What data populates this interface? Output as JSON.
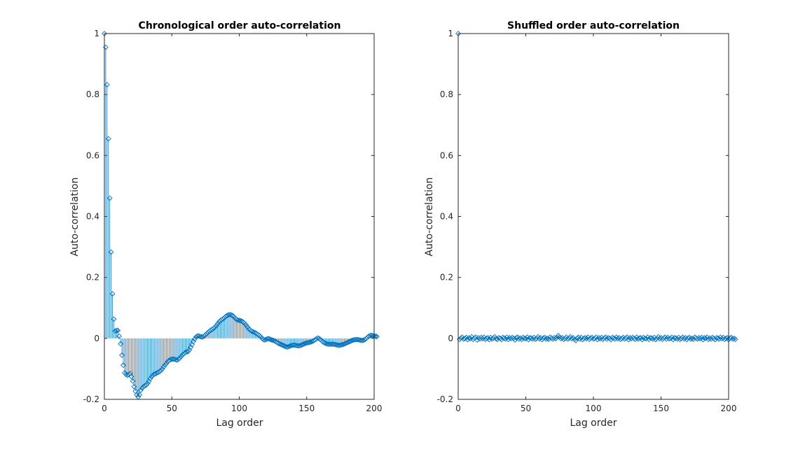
{
  "chart_data": [
    {
      "type": "stem",
      "title": "Chronological order auto-correlation",
      "xlabel": "Lag order",
      "ylabel": "Auto-correlation",
      "xlim": [
        0,
        200
      ],
      "ylim": [
        -0.2,
        1
      ],
      "xticks": [
        "0",
        "50",
        "100",
        "150",
        "200"
      ],
      "yticks": [
        "-0.2",
        "0",
        "0.2",
        "0.4",
        "0.6",
        "0.8",
        "1"
      ],
      "marker": "diamond",
      "color": "#0072BD",
      "grid": false,
      "lag_start": 0,
      "values": [
        1.0,
        0.955,
        0.832,
        0.655,
        0.46,
        0.283,
        0.146,
        0.063,
        0.024,
        0.026,
        0.026,
        0.007,
        -0.018,
        -0.055,
        -0.088,
        -0.113,
        -0.118,
        -0.121,
        -0.119,
        -0.115,
        -0.125,
        -0.14,
        -0.158,
        -0.173,
        -0.185,
        -0.192,
        -0.185,
        -0.17,
        -0.163,
        -0.158,
        -0.155,
        -0.153,
        -0.148,
        -0.141,
        -0.132,
        -0.126,
        -0.121,
        -0.117,
        -0.116,
        -0.113,
        -0.111,
        -0.108,
        -0.105,
        -0.1,
        -0.093,
        -0.087,
        -0.082,
        -0.076,
        -0.072,
        -0.07,
        -0.068,
        -0.068,
        -0.068,
        -0.07,
        -0.071,
        -0.068,
        -0.064,
        -0.059,
        -0.054,
        -0.05,
        -0.046,
        -0.044,
        -0.043,
        -0.038,
        -0.029,
        -0.02,
        -0.01,
        -0.002,
        0.005,
        0.008,
        0.008,
        0.006,
        0.005,
        0.005,
        0.008,
        0.012,
        0.016,
        0.02,
        0.024,
        0.027,
        0.03,
        0.033,
        0.037,
        0.042,
        0.048,
        0.054,
        0.058,
        0.061,
        0.064,
        0.068,
        0.072,
        0.075,
        0.077,
        0.078,
        0.077,
        0.075,
        0.071,
        0.066,
        0.062,
        0.06,
        0.059,
        0.058,
        0.056,
        0.053,
        0.049,
        0.044,
        0.038,
        0.032,
        0.028,
        0.024,
        0.022,
        0.02,
        0.018,
        0.015,
        0.012,
        0.009,
        0.005,
        0.0,
        -0.004,
        -0.005,
        -0.003,
        -0.001,
        -0.001,
        -0.003,
        -0.005,
        -0.006,
        -0.008,
        -0.01,
        -0.013,
        -0.016,
        -0.018,
        -0.02,
        -0.022,
        -0.024,
        -0.026,
        -0.028,
        -0.028,
        -0.026,
        -0.024,
        -0.023,
        -0.022,
        -0.022,
        -0.023,
        -0.024,
        -0.024,
        -0.024,
        -0.022,
        -0.02,
        -0.018,
        -0.016,
        -0.015,
        -0.014,
        -0.013,
        -0.012,
        -0.01,
        -0.008,
        -0.005,
        -0.002,
        0.001,
        0.0,
        -0.003,
        -0.007,
        -0.011,
        -0.014,
        -0.016,
        -0.018,
        -0.019,
        -0.019,
        -0.019,
        -0.019,
        -0.019,
        -0.02,
        -0.021,
        -0.022,
        -0.023,
        -0.022,
        -0.021,
        -0.02,
        -0.018,
        -0.016,
        -0.014,
        -0.012,
        -0.01,
        -0.008,
        -0.006,
        -0.005,
        -0.004,
        -0.004,
        -0.004,
        -0.005,
        -0.006,
        -0.007,
        -0.006,
        -0.004,
        -0.001,
        0.003,
        0.007,
        0.009,
        0.01,
        0.009,
        0.008,
        0.007,
        0.006
      ]
    },
    {
      "type": "stem",
      "title": "Shuffled order auto-correlation",
      "xlabel": "Lag order",
      "ylabel": "Auto-correlation",
      "xlim": [
        0,
        200
      ],
      "ylim": [
        -0.2,
        1
      ],
      "xticks": [
        "0",
        "50",
        "100",
        "150",
        "200"
      ],
      "yticks": [
        "-0.2",
        "0",
        "0.2",
        "0.4",
        "0.6",
        "0.8",
        "1"
      ],
      "marker": "diamond",
      "color": "#0072BD",
      "grid": false,
      "lag_start": 0,
      "values": [
        1.0,
        -0.003,
        0.001,
        0.004,
        -0.002,
        0.0,
        0.003,
        -0.004,
        0.002,
        -0.001,
        0.005,
        -0.003,
        0.001,
        0.004,
        -0.005,
        0.002,
        -0.002,
        0.003,
        -0.001,
        0.004,
        -0.003,
        0.0,
        0.002,
        -0.004,
        0.003,
        -0.002,
        0.001,
        0.005,
        -0.001,
        -0.003,
        0.002,
        0.0,
        -0.004,
        0.003,
        0.001,
        -0.002,
        0.004,
        -0.003,
        0.002,
        -0.001,
        0.003,
        0.0,
        -0.005,
        0.002,
        0.004,
        -0.002,
        0.001,
        -0.003,
        0.003,
        0.0,
        -0.001,
        0.004,
        -0.004,
        0.002,
        0.001,
        -0.002,
        0.003,
        -0.003,
        0.0,
        0.005,
        -0.001,
        0.002,
        -0.004,
        0.001,
        0.003,
        -0.002,
        0.0,
        -0.003,
        0.004,
        0.001,
        -0.002,
        0.002,
        -0.001,
        0.003,
        0.009,
        0.004,
        -0.001,
        0.002,
        -0.003,
        0.0,
        0.004,
        -0.002,
        0.001,
        0.005,
        -0.001,
        0.002,
        -0.003,
        -0.007,
        0.001,
        0.004,
        -0.002,
        0.003,
        -0.004,
        0.0,
        0.002,
        -0.001,
        0.004,
        -0.003,
        0.001,
        0.003,
        -0.002,
        0.0,
        0.004,
        -0.004,
        0.002,
        -0.001,
        0.003,
        -0.003,
        0.001,
        0.004,
        -0.002,
        0.002,
        0.0,
        -0.004,
        0.003,
        0.001,
        -0.002,
        0.004,
        -0.001,
        0.002,
        -0.003,
        0.0,
        0.003,
        -0.002,
        0.001,
        0.004,
        -0.004,
        0.002,
        -0.001,
        0.003,
        0.0,
        -0.003,
        0.004,
        -0.002,
        0.001,
        0.002,
        -0.004,
        0.003,
        0.0,
        -0.001,
        0.004,
        -0.003,
        0.002,
        0.001,
        -0.002,
        0.003,
        -0.004,
        0.0,
        0.005,
        -0.001,
        0.002,
        -0.003,
        0.001,
        0.004,
        -0.002,
        0.003,
        -0.001,
        0.0,
        0.004,
        -0.004,
        0.002,
        0.001,
        -0.002,
        0.003,
        -0.003,
        0.0,
        0.004,
        -0.001,
        0.002,
        -0.004,
        0.001,
        0.003,
        -0.002,
        0.0,
        -0.003,
        0.004,
        0.001,
        -0.002,
        0.002,
        -0.001,
        0.003,
        -0.004,
        0.002,
        0.0,
        0.004,
        -0.003,
        0.001,
        -0.002,
        0.003,
        0.0,
        -0.004,
        0.002,
        0.001,
        -0.002,
        0.004,
        -0.001,
        0.003,
        -0.003,
        0.0,
        0.002,
        -0.004,
        0.001,
        0.003,
        -0.002,
        0.0,
        -0.003
      ]
    }
  ]
}
